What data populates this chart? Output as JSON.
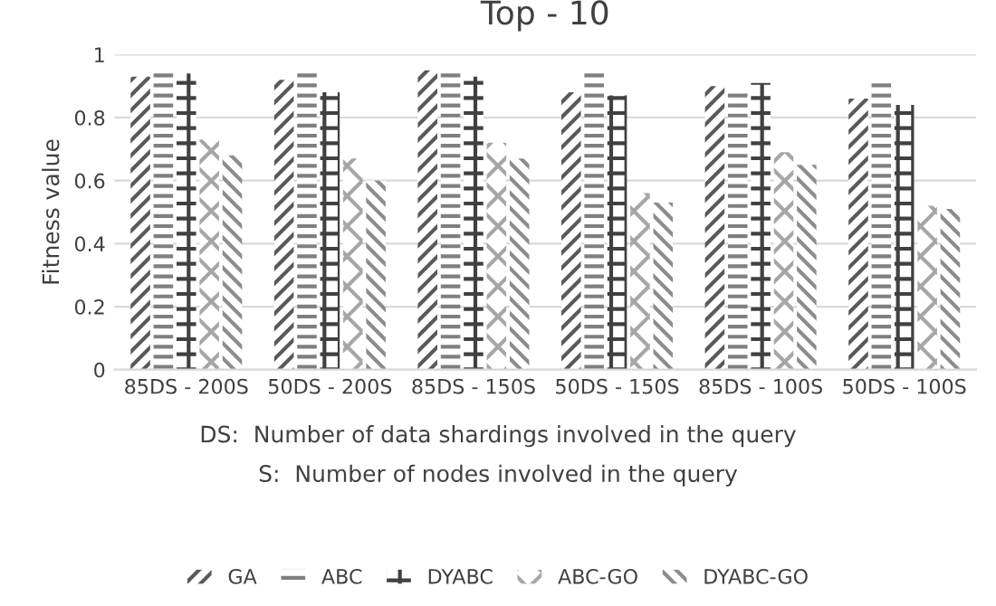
{
  "chart_data": {
    "type": "bar",
    "title": "Top - 10",
    "ylabel": "Fitness value",
    "categories": [
      "85DS - 200S",
      "50DS - 200S",
      "85DS - 150S",
      "50DS - 150S",
      "85DS - 100S",
      "50DS - 100S"
    ],
    "series": [
      {
        "name": "GA",
        "color": "#595959",
        "values": [
          0.93,
          0.92,
          0.95,
          0.88,
          0.9,
          0.86
        ]
      },
      {
        "name": "ABC",
        "color": "#7f7f7f",
        "values": [
          0.95,
          0.95,
          0.95,
          0.95,
          0.89,
          0.92
        ]
      },
      {
        "name": "DYABC",
        "color": "#404040",
        "values": [
          0.94,
          0.88,
          0.93,
          0.87,
          0.91,
          0.84
        ]
      },
      {
        "name": "ABC-GO",
        "color": "#a6a6a6",
        "values": [
          0.73,
          0.67,
          0.72,
          0.56,
          0.69,
          0.52
        ]
      },
      {
        "name": "DYABC-GO",
        "color": "#8c8c8c",
        "values": [
          0.68,
          0.6,
          0.67,
          0.53,
          0.65,
          0.51
        ]
      }
    ],
    "ylim": [
      0,
      1
    ],
    "yticks": [
      0,
      0.2,
      0.4,
      0.6,
      0.8,
      1
    ],
    "grid": "y",
    "legend": "bottom",
    "annotations": [
      "DS:  Number of data shardings involved in the query",
      "S:  Number of nodes involved in the query"
    ]
  }
}
